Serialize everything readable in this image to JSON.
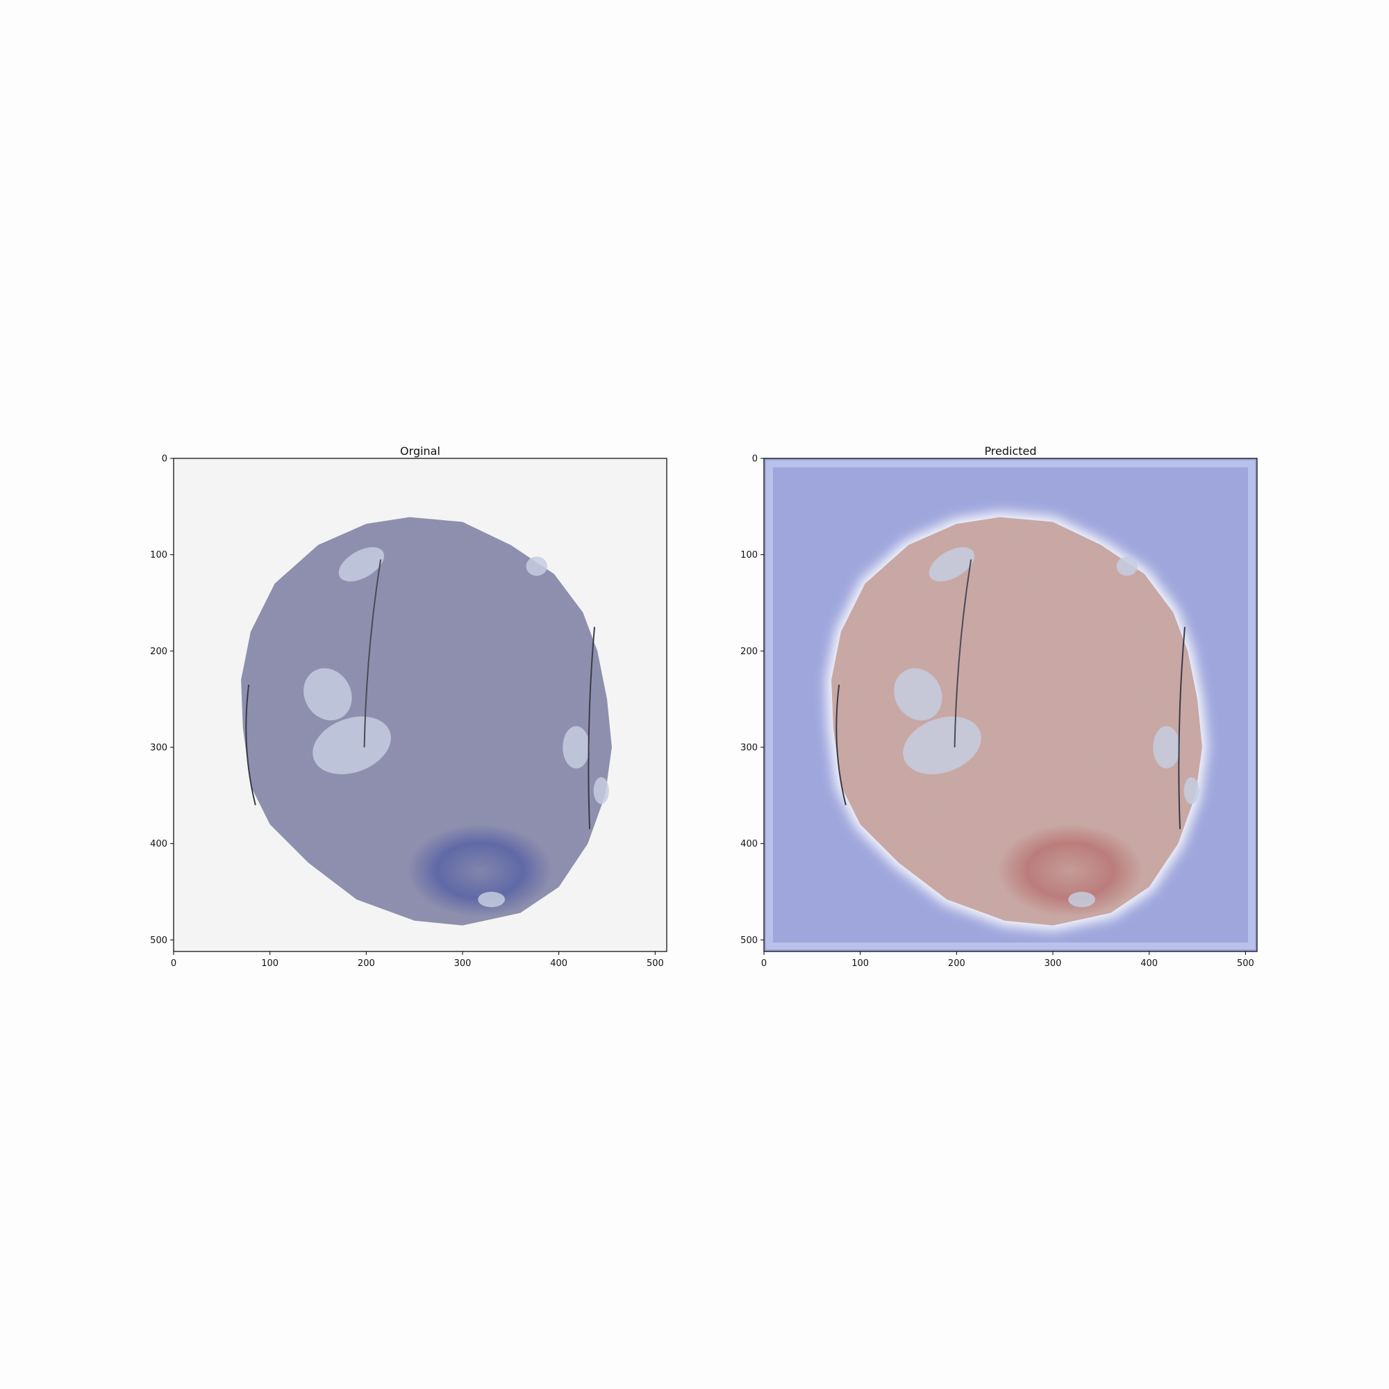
{
  "figure": {
    "panels": [
      {
        "title": "Orginal",
        "background": "#f4f4f4",
        "tissue_color": "#8f8fac",
        "xlim": [
          0,
          512
        ],
        "ylim": [
          512,
          0
        ],
        "x_ticks": [
          0,
          100,
          200,
          300,
          400,
          500
        ],
        "y_ticks": [
          0,
          100,
          200,
          300,
          400,
          500
        ]
      },
      {
        "title": "Predicted",
        "background": "#9ea6dc",
        "tissue_color": "#c6a8a4",
        "xlim": [
          0,
          512
        ],
        "ylim": [
          512,
          0
        ],
        "x_ticks": [
          0,
          100,
          200,
          300,
          400,
          500
        ],
        "y_ticks": [
          0,
          100,
          200,
          300,
          400,
          500
        ]
      }
    ]
  }
}
